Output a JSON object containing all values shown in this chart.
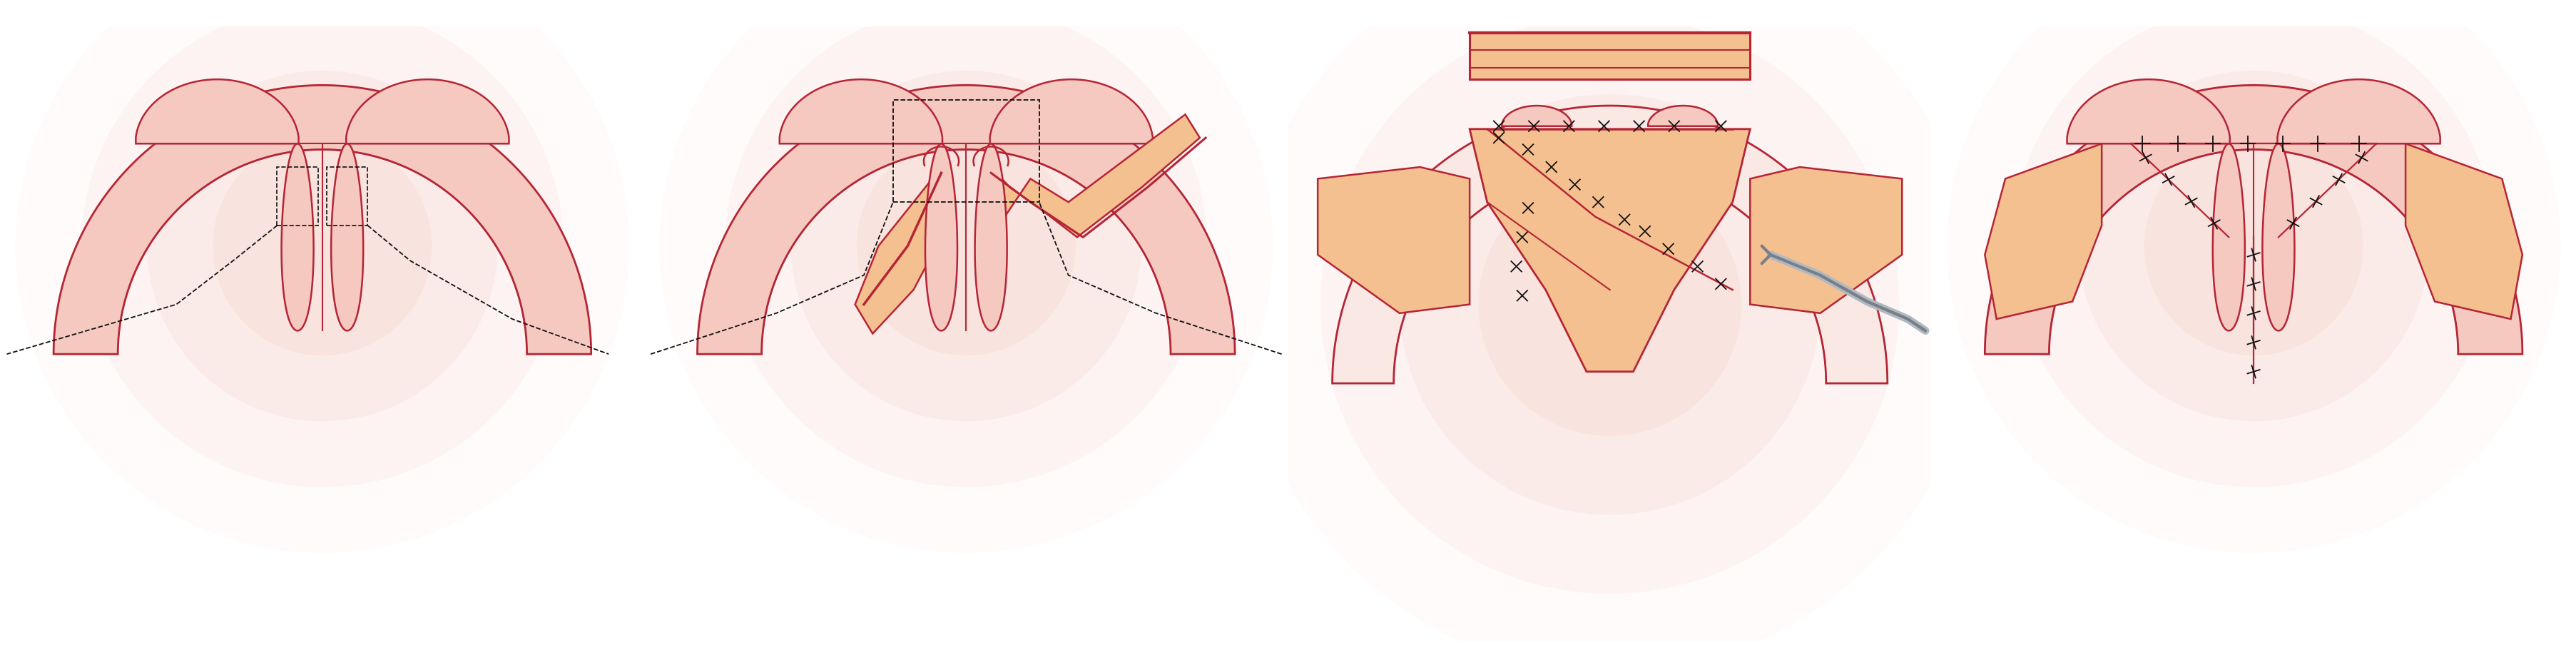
{
  "bg": "#ffffff",
  "skin": "#f5c8c0",
  "skin_pale": "#fae8e5",
  "skin_mid": "#f0b8b0",
  "ol": "#b52535",
  "flap": "#f5c090",
  "flap2": "#e8a870",
  "stitch": "#111111",
  "ig": "#b0b8c0",
  "idk": "#787f88",
  "fw": 36.11,
  "fh": 9.37
}
